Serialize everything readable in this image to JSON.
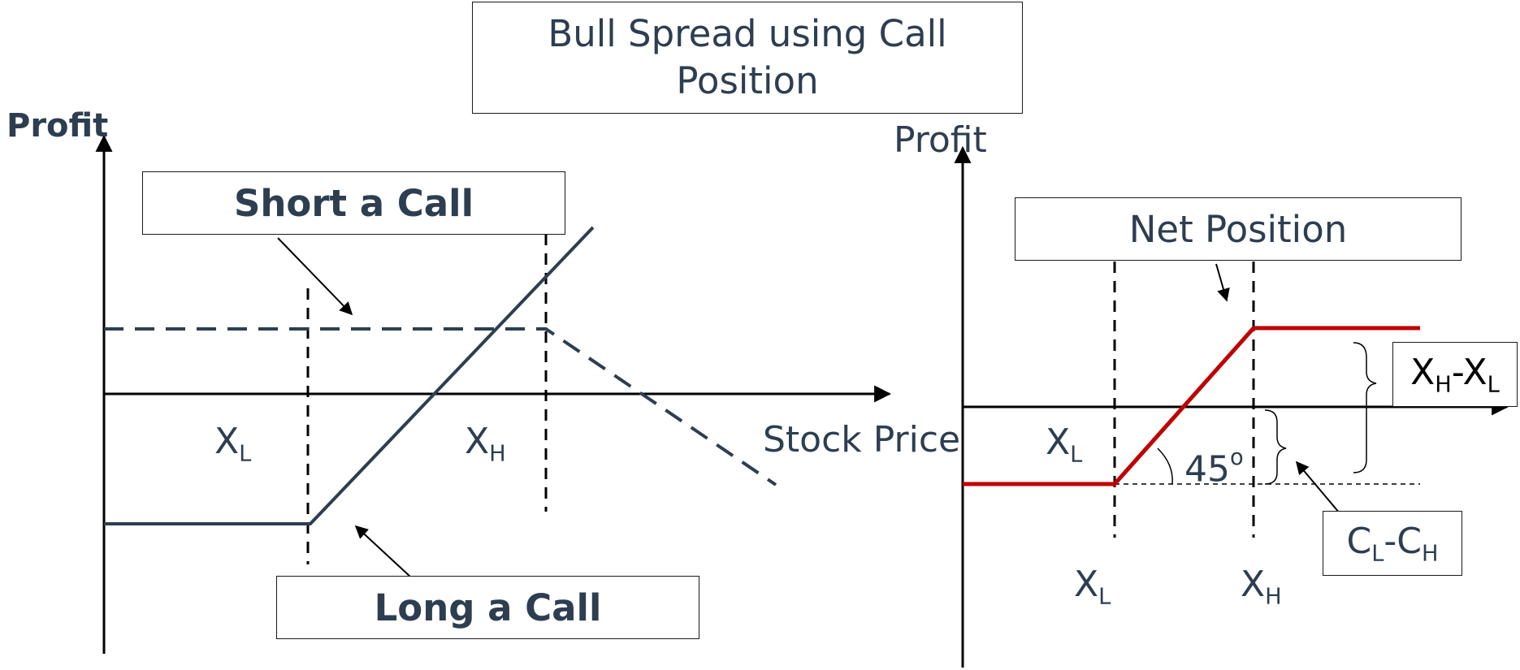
{
  "title": {
    "line1": "Bull Spread using Call",
    "line2": "Position"
  },
  "left_chart": {
    "y_axis_label": "Profit",
    "x_axis_label": "Stock Price",
    "short_call_label": "Short a Call",
    "long_call_label": "Long a Call",
    "xl": {
      "base": "X",
      "sub": "L"
    },
    "xh": {
      "base": "X",
      "sub": "H"
    }
  },
  "right_chart": {
    "y_axis_label": "Profit",
    "net_position_label": "Net Position",
    "xl_upper": {
      "base": "X",
      "sub": "L"
    },
    "xl_lower": {
      "base": "X",
      "sub": "L"
    },
    "xh_lower": {
      "base": "X",
      "sub": "H"
    },
    "angle": {
      "value": "45",
      "sup": "o"
    },
    "range_label": {
      "a": "X",
      "a_sub": "H",
      "dash": "-",
      "b": "X",
      "b_sub": "L"
    },
    "cost_label": {
      "a": "C",
      "a_sub": "L",
      "dash": "-",
      "b": "C",
      "b_sub": "H"
    }
  },
  "colors": {
    "text": "#2d3e50",
    "line": "#2d3e50",
    "net": "#c00000",
    "axis": "#000000"
  }
}
